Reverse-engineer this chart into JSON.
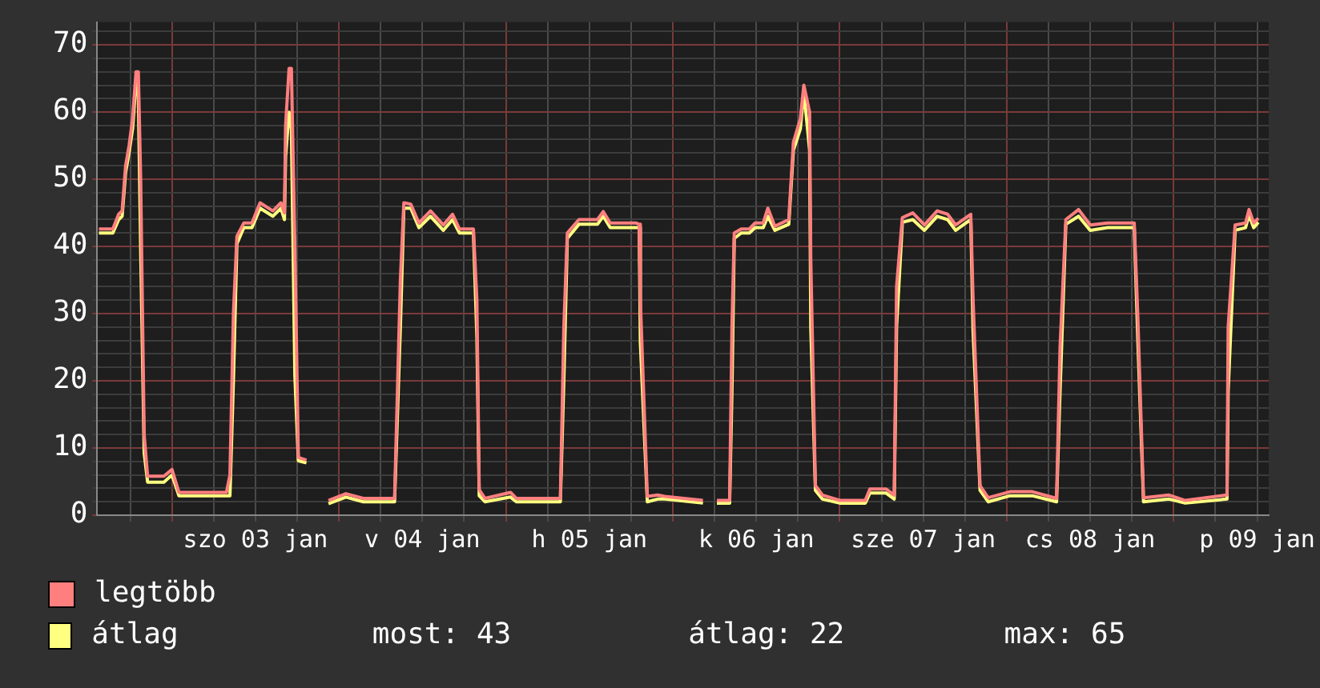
{
  "chart_data": {
    "type": "line",
    "legend": "bottom",
    "grid": true,
    "marker": "none",
    "line_style": "solid",
    "x": [
      "--01-02T13:30",
      "--01-02T15:30",
      "--01-02T16:20",
      "--01-02T16:50",
      "--01-02T17:20",
      "--01-02T17:50",
      "--01-02T18:20",
      "--01-02T18:50",
      "--01-02T19:10",
      "--01-02T19:30",
      "--01-02T20:00",
      "--01-02T20:30",
      "--01-02T22:50",
      "--01-03T00:00",
      "--01-03T01:00",
      "--01-03T07:50",
      "--01-03T08:20",
      "--01-03T08:50",
      "--01-03T09:20",
      "--01-03T10:20",
      "--01-03T11:30",
      "--01-03T12:40",
      "--01-03T14:30",
      "--01-03T15:40",
      "--01-03T16:10",
      "--01-03T16:20",
      "--01-03T16:50",
      "--01-03T17:10",
      "--01-03T17:40",
      "--01-03T18:10",
      "--01-03T19:20",
      "--01-03T20:30",
      "--01-03T22:30",
      "--01-04T01:00",
      "--01-04T03:30",
      "--01-04T08:00",
      "--01-04T08:50",
      "--01-04T09:20",
      "--01-04T10:20",
      "--01-04T11:30",
      "--01-04T13:10",
      "--01-04T15:00",
      "--01-04T16:20",
      "--01-04T17:20",
      "--01-04T19:20",
      "--01-04T19:50",
      "--01-04T20:10",
      "--01-04T21:00",
      "--01-05T00:40",
      "--01-05T01:30",
      "--01-05T07:50",
      "--01-05T08:20",
      "--01-05T08:50",
      "--01-05T10:30",
      "--01-05T13:10",
      "--01-05T14:00",
      "--01-05T15:00",
      "--01-05T18:40",
      "--01-05T19:10",
      "--01-05T19:20",
      "--01-05T20:20",
      "--01-05T21:50",
      "--01-05T22:50",
      "--01-06T04:20",
      "--01-06T05:10",
      "--01-06T06:20",
      "--01-06T08:10",
      "--01-06T08:30",
      "--01-06T08:50",
      "--01-06T09:50",
      "--01-06T11:00",
      "--01-06T11:50",
      "--01-06T13:00",
      "--01-06T13:40",
      "--01-06T14:40",
      "--01-06T16:40",
      "--01-06T17:20",
      "--01-06T18:20",
      "--01-06T18:50",
      "--01-06T19:40",
      "--01-06T19:50",
      "--01-06T20:30",
      "--01-06T21:30",
      "--01-07T00:00",
      "--01-07T03:40",
      "--01-07T04:20",
      "--01-07T06:40",
      "--01-07T07:50",
      "--01-07T08:10",
      "--01-07T09:00",
      "--01-07T10:30",
      "--01-07T12:10",
      "--01-07T14:00",
      "--01-07T15:30",
      "--01-07T16:40",
      "--01-07T18:50",
      "--01-07T19:10",
      "--01-07T20:10",
      "--01-07T21:20",
      "--01-08T00:30",
      "--01-08T03:40",
      "--01-08T07:10",
      "--01-08T07:40",
      "--01-08T08:30",
      "--01-08T10:20",
      "--01-08T12:00",
      "--01-08T14:30",
      "--01-08T18:20",
      "--01-08T18:50",
      "--01-08T19:40",
      "--01-08T23:20",
      "--01-09T01:40",
      "--01-09T07:40",
      "--01-09T07:50",
      "--01-09T08:50",
      "--01-09T10:20",
      "--01-09T10:50",
      "--01-09T11:30",
      "--01-09T12:10"
    ],
    "series": [
      {
        "name": "legtöbb",
        "color": "#ff7f7f",
        "values": [
          42.6,
          42.6,
          44.8,
          45.3,
          52,
          55,
          59,
          66,
          66,
          50,
          12,
          5.8,
          5.8,
          6.8,
          3.4,
          3.4,
          6,
          30,
          41.5,
          43.5,
          43.5,
          46.5,
          45.3,
          46.5,
          45,
          58,
          66.5,
          66.5,
          40,
          8.6,
          8.2,
          null,
          2.2,
          3.2,
          2.5,
          2.5,
          35,
          46.5,
          46.3,
          43.5,
          45.3,
          43.2,
          44.8,
          42.6,
          42.6,
          32,
          3.8,
          2.5,
          3.4,
          2.5,
          2.5,
          28,
          42,
          44,
          44,
          45.2,
          43.5,
          43.5,
          43.3,
          32,
          2.8,
          3,
          2.8,
          2.2,
          null,
          2.2,
          2.2,
          28,
          42,
          42.6,
          42.6,
          43.5,
          43.5,
          45.7,
          43,
          44,
          55.5,
          59,
          64,
          60,
          38,
          4.4,
          3,
          2.2,
          2.2,
          3.9,
          3.9,
          3,
          34,
          44.3,
          45,
          43.2,
          45.3,
          44.8,
          43.2,
          44.8,
          32,
          4.4,
          2.6,
          3.5,
          3.5,
          2.5,
          25,
          44,
          45.5,
          43.2,
          43.5,
          43.5,
          30,
          2.6,
          3,
          2.2,
          3,
          28,
          43.2,
          43.5,
          45.5,
          43.5,
          44.2
        ]
      },
      {
        "name": "átlag",
        "color": "#ffff80",
        "values": [
          42,
          42,
          44,
          44.5,
          51,
          54,
          57.5,
          64.5,
          62.4,
          39.6,
          9.3,
          4.9,
          4.9,
          6,
          2.9,
          2.9,
          2.9,
          20,
          40.4,
          42.8,
          42.8,
          45.7,
          44.5,
          45.7,
          44,
          53.4,
          60,
          57.5,
          20.8,
          8.1,
          7.8,
          null,
          1.7,
          2.7,
          2,
          2,
          28,
          45.7,
          45.7,
          42.8,
          44.5,
          42.4,
          44,
          42,
          42,
          26.5,
          2.9,
          2,
          2.7,
          2,
          2,
          20,
          41.2,
          43.3,
          43.3,
          44.5,
          42.8,
          42.8,
          42.8,
          25.7,
          2,
          2.4,
          2.4,
          1.8,
          null,
          1.8,
          1.8,
          18.4,
          41.2,
          42,
          42,
          42.8,
          42.8,
          44.5,
          42.4,
          43.3,
          54.3,
          57.5,
          63.1,
          54.3,
          28,
          3.7,
          2.4,
          1.8,
          1.8,
          3.3,
          3.3,
          2.4,
          28,
          43.6,
          44,
          42.4,
          44.5,
          44,
          42.4,
          44,
          27.3,
          3.7,
          2,
          2.9,
          2.9,
          2,
          18.4,
          43.3,
          44.5,
          42.4,
          42.8,
          42.8,
          26.5,
          2,
          2.4,
          1.8,
          2.4,
          18.4,
          42.4,
          42.8,
          44.7,
          42.8,
          43.6
        ]
      }
    ],
    "xlim": [
      "--01-02T13:15",
      "--01-09T13:40"
    ],
    "xticks": [
      {
        "value": "--01-02T18:00",
        "label": null
      },
      {
        "value": "--01-03T00:00",
        "label": null
      },
      {
        "value": "--01-03T06:00",
        "label": null
      },
      {
        "value": "--01-03T12:00",
        "label": "szo 03 jan"
      },
      {
        "value": "--01-03T18:00",
        "label": null
      },
      {
        "value": "--01-04T00:00",
        "label": null
      },
      {
        "value": "--01-04T06:00",
        "label": null
      },
      {
        "value": "--01-04T12:00",
        "label": "v 04 jan"
      },
      {
        "value": "--01-04T18:00",
        "label": null
      },
      {
        "value": "--01-05T00:00",
        "label": null
      },
      {
        "value": "--01-05T06:00",
        "label": null
      },
      {
        "value": "--01-05T12:00",
        "label": "h 05 jan"
      },
      {
        "value": "--01-05T18:00",
        "label": null
      },
      {
        "value": "--01-06T00:00",
        "label": null
      },
      {
        "value": "--01-06T06:00",
        "label": null
      },
      {
        "value": "--01-06T12:00",
        "label": "k 06 jan"
      },
      {
        "value": "--01-06T18:00",
        "label": null
      },
      {
        "value": "--01-07T00:00",
        "label": null
      },
      {
        "value": "--01-07T06:00",
        "label": null
      },
      {
        "value": "--01-07T12:00",
        "label": "sze 07 jan"
      },
      {
        "value": "--01-07T18:00",
        "label": null
      },
      {
        "value": "--01-08T00:00",
        "label": null
      },
      {
        "value": "--01-08T06:00",
        "label": null
      },
      {
        "value": "--01-08T12:00",
        "label": "cs 08 jan"
      },
      {
        "value": "--01-08T18:00",
        "label": null
      },
      {
        "value": "--01-09T00:00",
        "label": null
      },
      {
        "value": "--01-09T06:00",
        "label": null
      },
      {
        "value": "--01-09T12:00",
        "label": "p 09 jan"
      }
    ],
    "ylim": [
      0,
      73.4
    ],
    "yticks": [
      0,
      {
        "value": 2,
        "label": null
      },
      {
        "value": 4,
        "label": null
      },
      {
        "value": 6,
        "label": null
      },
      {
        "value": 8,
        "label": null
      },
      10,
      {
        "value": 12,
        "label": null
      },
      {
        "value": 14,
        "label": null
      },
      {
        "value": 16,
        "label": null
      },
      {
        "value": 18,
        "label": null
      },
      20,
      {
        "value": 22,
        "label": null
      },
      {
        "value": 24,
        "label": null
      },
      {
        "value": 26,
        "label": null
      },
      {
        "value": 28,
        "label": null
      },
      30,
      {
        "value": 32,
        "label": null
      },
      {
        "value": 34,
        "label": null
      },
      {
        "value": 36,
        "label": null
      },
      {
        "value": 38,
        "label": null
      },
      40,
      {
        "value": 42,
        "label": null
      },
      {
        "value": 44,
        "label": null
      },
      {
        "value": 46,
        "label": null
      },
      {
        "value": 48,
        "label": null
      },
      50,
      {
        "value": 52,
        "label": null
      },
      {
        "value": 54,
        "label": null
      },
      {
        "value": 56,
        "label": null
      },
      {
        "value": 58,
        "label": null
      },
      60,
      {
        "value": 62,
        "label": null
      },
      {
        "value": 64,
        "label": null
      },
      {
        "value": 66,
        "label": null
      },
      {
        "value": 68,
        "label": null
      },
      70,
      {
        "value": 72,
        "label": null
      }
    ],
    "annotations": [
      "most: 43",
      "átlag: 22",
      "max: 65"
    ]
  }
}
